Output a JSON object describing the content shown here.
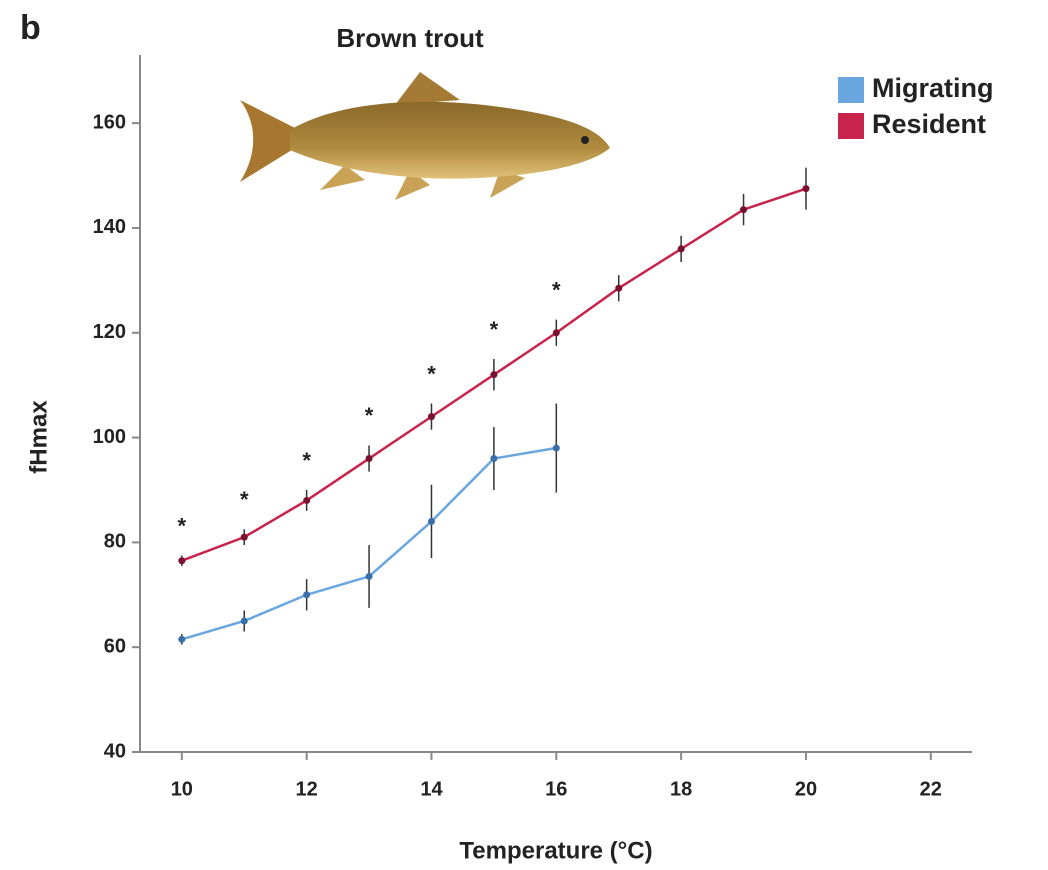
{
  "chart_data": {
    "type": "line",
    "panel_label": "b",
    "title": "Brown trout",
    "x_label": "Temperature (°C)",
    "y_label": "fHmax",
    "xlim": [
      9.33,
      22.66
    ],
    "xticks": [
      10,
      12,
      14,
      16,
      18,
      20,
      22
    ],
    "ylim": [
      40,
      173
    ],
    "yticks": [
      40,
      60,
      80,
      100,
      120,
      140,
      160
    ],
    "legend": "top-right",
    "series": [
      {
        "name": "Migrating",
        "color": "#6aa6df",
        "x": [
          10,
          11,
          12,
          13,
          14,
          15,
          16
        ],
        "values": [
          61.5,
          65,
          70,
          73.5,
          84,
          96,
          98
        ],
        "errors": [
          1,
          2,
          3,
          6,
          7,
          6,
          8.5
        ]
      },
      {
        "name": "Resident",
        "color": "#c8234a",
        "x": [
          10,
          11,
          12,
          13,
          14,
          15,
          16,
          17,
          18,
          19,
          20
        ],
        "values": [
          76.5,
          81,
          88,
          96,
          104,
          112,
          120,
          128.5,
          136,
          143.5,
          147.5
        ],
        "errors": [
          1,
          1.5,
          2,
          2.5,
          2.5,
          3,
          2.5,
          2.5,
          2.5,
          3,
          4
        ]
      }
    ],
    "significance": {
      "label": "*",
      "x": [
        10,
        11,
        12,
        13,
        14,
        15,
        16
      ]
    }
  }
}
